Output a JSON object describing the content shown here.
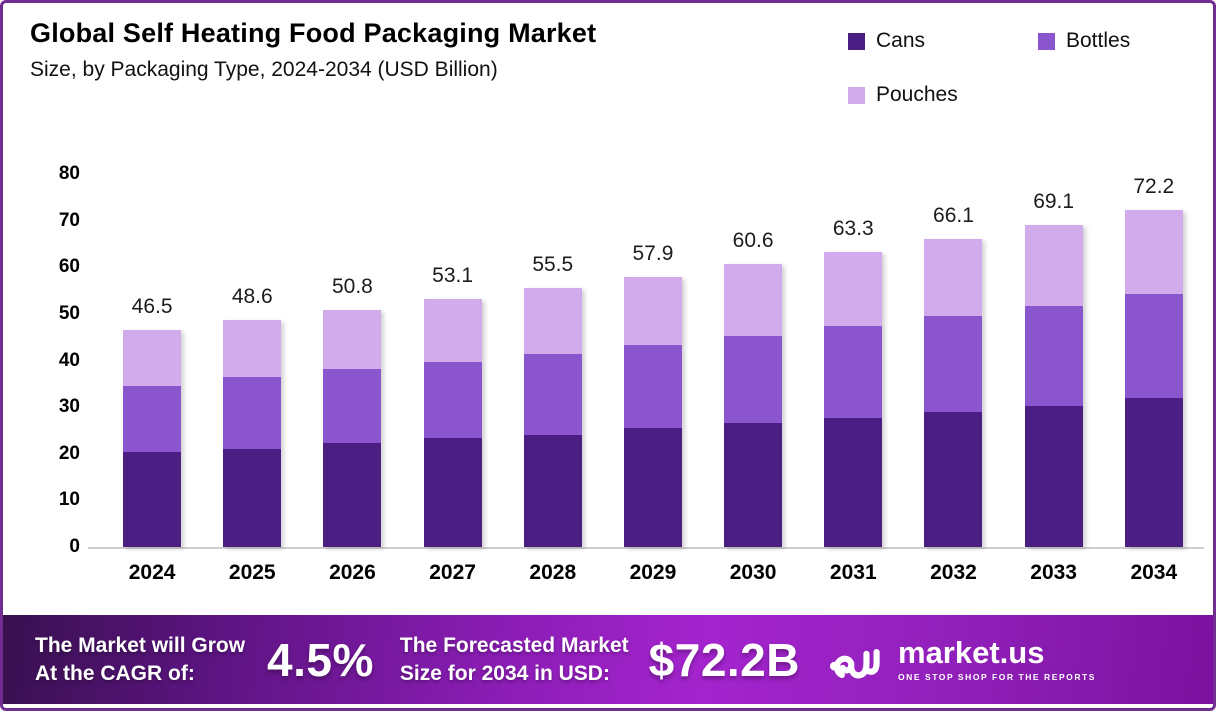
{
  "header": {
    "title": "Global Self Heating Food Packaging Market",
    "subtitle": "Size, by Packaging Type, 2024-2034 (USD Billion)"
  },
  "legend": [
    {
      "label": "Cans",
      "color": "#4A1E82"
    },
    {
      "label": "Bottles",
      "color": "#8B55CE"
    },
    {
      "label": "Pouches",
      "color": "#D2ABEC"
    }
  ],
  "chart_data": {
    "type": "bar",
    "stacked": true,
    "title": "Global Self Heating Food Packaging Market Size, by Packaging Type, 2024-2034 (USD Billion)",
    "categories": [
      "2024",
      "2025",
      "2026",
      "2027",
      "2028",
      "2029",
      "2030",
      "2031",
      "2032",
      "2033",
      "2034"
    ],
    "series": [
      {
        "name": "Cans",
        "color": "#4A1E82",
        "values": [
          20.3,
          21.1,
          22.4,
          23.3,
          24.1,
          25.5,
          26.6,
          27.6,
          29.0,
          30.2,
          32.0
        ]
      },
      {
        "name": "Bottles",
        "color": "#8B55CE",
        "values": [
          14.2,
          15.3,
          15.7,
          16.3,
          17.4,
          17.9,
          18.6,
          19.8,
          20.5,
          21.5,
          22.2
        ]
      },
      {
        "name": "Pouches",
        "color": "#D2ABEC",
        "values": [
          12.0,
          12.2,
          12.7,
          13.5,
          14.0,
          14.5,
          15.4,
          15.9,
          16.6,
          17.4,
          18.0
        ]
      }
    ],
    "totals": [
      46.5,
      48.6,
      50.8,
      53.1,
      55.5,
      57.9,
      60.6,
      63.3,
      66.1,
      69.1,
      72.2
    ],
    "xlabel": "",
    "ylabel": "",
    "ylim": [
      0,
      80
    ],
    "yticks": [
      0,
      10,
      20,
      30,
      40,
      50,
      60,
      70,
      80
    ],
    "grid": false,
    "legend_position": "top-right"
  },
  "footer": {
    "cagr_label_line1": "The Market will Grow",
    "cagr_label_line2": "At the CAGR of:",
    "cagr_value": "4.5%",
    "forecast_label_line1": "The Forecasted Market",
    "forecast_label_line2": "Size for 2034 in USD:",
    "forecast_value": "$72.2B",
    "brand": {
      "name": "market.us",
      "tagline": "ONE STOP SHOP FOR THE REPORTS"
    }
  },
  "colors": {
    "border": "#722d93",
    "axis_line": "#cfcfcf",
    "cans": "#4A1E82",
    "bottles": "#8B55CE",
    "pouches": "#D2ABEC",
    "footer_gradient_start": "#38104f",
    "footer_gradient_mid": "#a424ce",
    "footer_gradient_end": "#7a129e"
  }
}
